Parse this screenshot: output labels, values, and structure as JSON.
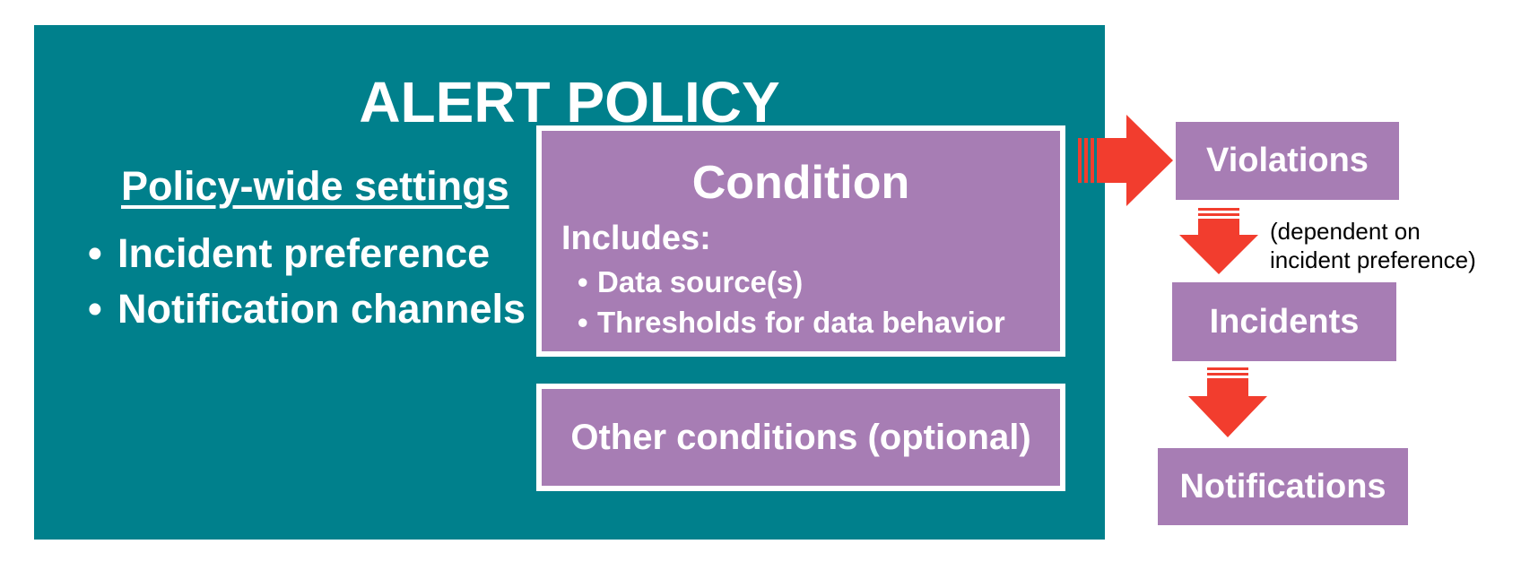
{
  "policy": {
    "title": "ALERT POLICY",
    "settings_title": "Policy-wide settings",
    "settings": [
      "Incident preference",
      "Notification channels"
    ]
  },
  "condition": {
    "title": "Condition",
    "includes_label": "Includes:",
    "items": [
      "Data source(s)",
      "Thresholds for data behavior"
    ]
  },
  "other_conditions": {
    "label": "Other conditions (optional)"
  },
  "flow": {
    "violations": "Violations",
    "note_line1": "(dependent on",
    "note_line2": "incident preference)",
    "incidents": "Incidents",
    "notifications": "Notifications"
  },
  "colors": {
    "policy_bg": "#00808c",
    "box_purple": "#a77db4",
    "arrow_red": "#f23d2e"
  }
}
